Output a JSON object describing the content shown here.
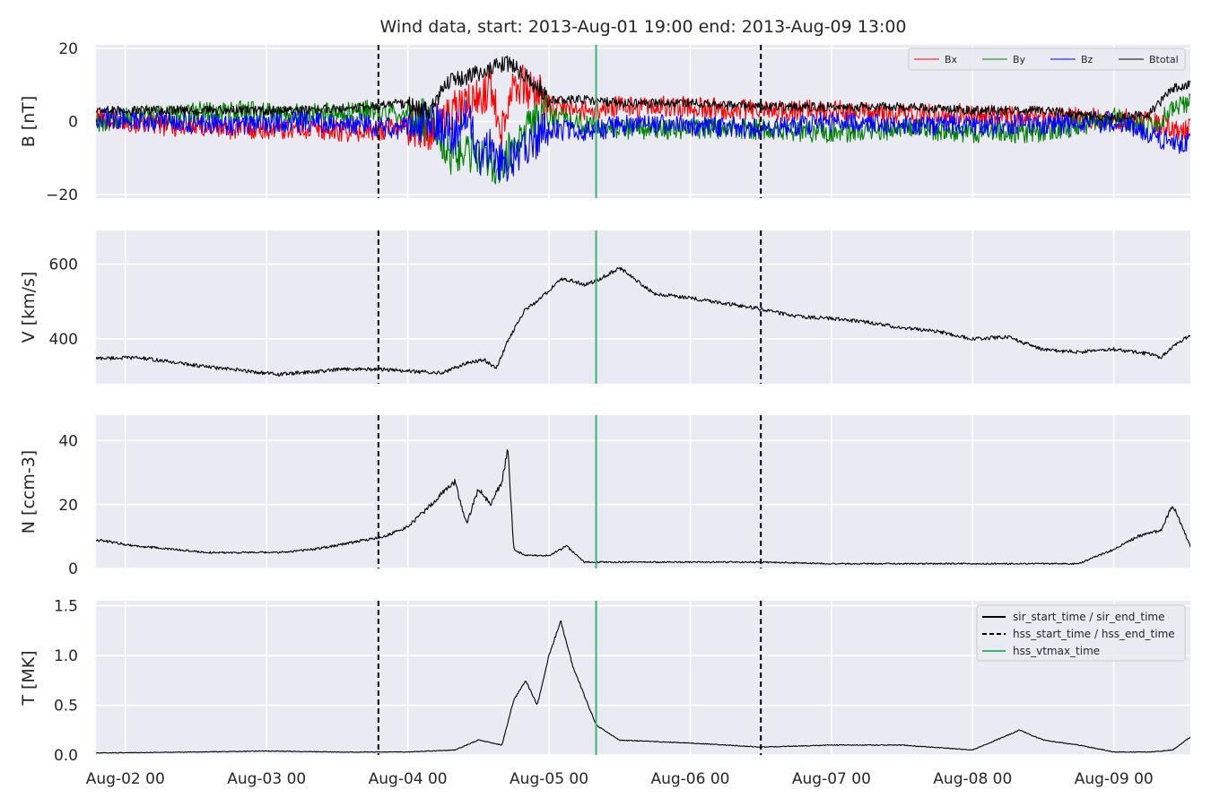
{
  "title": "Wind data, start: 2013-Aug-01 19:00  end: 2013-Aug-09 13:00",
  "colors": {
    "bx": "#ff0000",
    "by": "#008000",
    "bz": "#0000ff",
    "btotal": "#000000",
    "vtmax": "#3cb371",
    "panel_bg": "#eaeaf2",
    "grid": "#ffffff"
  },
  "chart_data": [
    {
      "type": "line",
      "ylabel": "B [nT]",
      "ylim": [
        -21,
        21
      ],
      "yticks": [
        -20,
        0,
        20
      ],
      "ytick_labels": [
        "−20",
        "0",
        "20"
      ],
      "legend_position": "top-right",
      "series": [
        {
          "name": "Bx",
          "color": "#ff0000",
          "x": [
            "08-01 19:00",
            "08-02 06:00",
            "08-02 18:00",
            "08-03 06:00",
            "08-03 18:00",
            "08-03 22:00",
            "08-04 04:00",
            "08-04 08:00",
            "08-04 12:00",
            "08-04 14:00",
            "08-04 16:00",
            "08-04 18:00",
            "08-04 20:00",
            "08-04 22:00",
            "08-05 00:00",
            "08-05 06:00",
            "08-05 12:00",
            "08-06 00:00",
            "08-06 12:00",
            "08-07 00:00",
            "08-07 12:00",
            "08-08 00:00",
            "08-08 12:00",
            "08-09 00:00",
            "08-09 06:00",
            "08-09 10:00",
            "08-09 13:00"
          ],
          "y": [
            1,
            -1,
            -2,
            -2,
            -3,
            -1,
            -2,
            3,
            6,
            10,
            -2,
            12,
            9,
            8,
            4,
            3,
            4,
            4,
            3,
            3,
            2,
            2,
            1,
            1,
            0,
            -2,
            -2
          ]
        },
        {
          "name": "By",
          "color": "#008000",
          "x": [
            "08-01 19:00",
            "08-02 06:00",
            "08-02 18:00",
            "08-03 06:00",
            "08-03 18:00",
            "08-03 22:00",
            "08-04 04:00",
            "08-04 06:00",
            "08-04 08:00",
            "08-04 12:00",
            "08-04 14:00",
            "08-04 16:00",
            "08-04 18:00",
            "08-04 20:00",
            "08-04 22:00",
            "08-05 00:00",
            "08-05 06:00",
            "08-05 12:00",
            "08-06 00:00",
            "08-06 12:00",
            "08-07 00:00",
            "08-07 12:00",
            "08-08 00:00",
            "08-08 12:00",
            "08-09 00:00",
            "08-09 06:00",
            "08-09 10:00",
            "08-09 13:00"
          ],
          "y": [
            0,
            2,
            3,
            2,
            3,
            2,
            0,
            -9,
            -10,
            -8,
            -12,
            -12,
            -6,
            -3,
            1,
            2,
            -1,
            -2,
            -2,
            -2,
            -3,
            -2,
            -3,
            -3,
            1,
            -2,
            3,
            5
          ]
        },
        {
          "name": "Bz",
          "color": "#0000ff",
          "x": [
            "08-01 19:00",
            "08-02 06:00",
            "08-02 18:00",
            "08-03 06:00",
            "08-03 18:00",
            "08-03 22:00",
            "08-04 04:00",
            "08-04 08:00",
            "08-04 10:00",
            "08-04 12:00",
            "08-04 14:00",
            "08-04 16:00",
            "08-04 18:00",
            "08-04 20:00",
            "08-04 22:00",
            "08-05 00:00",
            "08-05 06:00",
            "08-05 12:00",
            "08-06 00:00",
            "08-06 12:00",
            "08-07 00:00",
            "08-07 12:00",
            "08-08 00:00",
            "08-08 12:00",
            "08-09 00:00",
            "08-09 06:00",
            "08-09 10:00",
            "08-09 13:00"
          ],
          "y": [
            1,
            0,
            -1,
            0,
            -1,
            -2,
            0,
            -4,
            4,
            -10,
            -6,
            -12,
            -10,
            -8,
            -4,
            -2,
            -3,
            -1,
            -1,
            -2,
            0,
            -1,
            -1,
            -1,
            0,
            -3,
            -6,
            -6
          ]
        },
        {
          "name": "Btotal",
          "color": "#000000",
          "x": [
            "08-01 19:00",
            "08-02 06:00",
            "08-02 18:00",
            "08-03 06:00",
            "08-03 18:00",
            "08-03 22:00",
            "08-04 04:00",
            "08-04 06:00",
            "08-04 08:00",
            "08-04 12:00",
            "08-04 14:00",
            "08-04 16:00",
            "08-04 18:00",
            "08-04 20:00",
            "08-04 22:00",
            "08-05 00:00",
            "08-05 06:00",
            "08-05 12:00",
            "08-06 00:00",
            "08-06 12:00",
            "08-07 00:00",
            "08-07 12:00",
            "08-08 00:00",
            "08-08 12:00",
            "08-09 00:00",
            "08-09 06:00",
            "08-09 10:00",
            "08-09 13:00"
          ],
          "y": [
            3,
            3,
            3,
            3,
            4,
            5,
            3,
            10,
            11,
            13,
            14,
            16,
            15,
            12,
            10,
            6,
            6,
            5,
            5,
            4,
            4,
            4,
            3,
            3,
            1,
            2,
            9,
            10
          ]
        }
      ]
    },
    {
      "type": "line",
      "ylabel": "V [km/s]",
      "ylim": [
        280,
        690
      ],
      "yticks": [
        400,
        600
      ],
      "series": [
        {
          "name": "",
          "color": "#000000",
          "x": [
            "08-01 19:00",
            "08-02 02:00",
            "08-02 08:00",
            "08-02 14:00",
            "08-02 20:00",
            "08-03 02:00",
            "08-03 08:00",
            "08-03 14:00",
            "08-03 20:00",
            "08-04 02:00",
            "08-04 06:00",
            "08-04 10:00",
            "08-04 13:00",
            "08-04 15:00",
            "08-04 17:00",
            "08-04 20:00",
            "08-04 22:00",
            "08-05 02:00",
            "08-05 04:00",
            "08-05 06:00",
            "08-05 08:00",
            "08-05 12:00",
            "08-05 18:00",
            "08-06 00:00",
            "08-06 06:00",
            "08-06 12:00",
            "08-06 18:00",
            "08-07 00:00",
            "08-07 06:00",
            "08-07 12:00",
            "08-07 18:00",
            "08-08 00:00",
            "08-08 06:00",
            "08-08 12:00",
            "08-08 18:00",
            "08-09 00:00",
            "08-09 06:00",
            "08-09 08:00",
            "08-09 10:00",
            "08-09 13:00"
          ],
          "y": [
            348,
            350,
            338,
            325,
            315,
            305,
            312,
            320,
            318,
            312,
            310,
            335,
            345,
            320,
            395,
            480,
            500,
            560,
            555,
            545,
            555,
            590,
            520,
            510,
            495,
            480,
            460,
            455,
            445,
            430,
            420,
            400,
            405,
            370,
            365,
            372,
            360,
            350,
            380,
            410
          ]
        }
      ]
    },
    {
      "type": "line",
      "ylabel": "N [ccm-3]",
      "ylim": [
        0,
        48
      ],
      "yticks": [
        0,
        20,
        40
      ],
      "series": [
        {
          "name": "",
          "color": "#000000",
          "x": [
            "08-01 19:00",
            "08-02 02:00",
            "08-02 08:00",
            "08-02 14:00",
            "08-02 20:00",
            "08-03 02:00",
            "08-03 08:00",
            "08-03 14:00",
            "08-03 20:00",
            "08-04 00:00",
            "08-04 04:00",
            "08-04 06:00",
            "08-04 08:00",
            "08-04 10:00",
            "08-04 12:00",
            "08-04 14:00",
            "08-04 16:00",
            "08-04 17:00",
            "08-04 18:00",
            "08-04 20:00",
            "08-05 00:00",
            "08-05 03:00",
            "08-05 06:00",
            "08-05 12:00",
            "08-06 00:00",
            "08-06 12:00",
            "08-07 00:00",
            "08-07 12:00",
            "08-08 00:00",
            "08-08 12:00",
            "08-08 18:00",
            "08-09 00:00",
            "08-09 04:00",
            "08-09 08:00",
            "08-09 10:00",
            "08-09 13:00"
          ],
          "y": [
            9,
            7,
            6,
            5,
            5,
            5,
            6,
            8,
            10,
            13,
            20,
            24,
            27,
            14,
            25,
            20,
            27,
            38,
            6,
            4,
            4,
            7,
            2,
            2,
            2,
            2,
            1.5,
            1.5,
            1.5,
            1.5,
            1.5,
            6,
            10,
            12,
            20,
            7
          ]
        }
      ]
    },
    {
      "type": "line",
      "ylabel": "T [MK]",
      "ylim": [
        0,
        1.55
      ],
      "yticks": [
        0.0,
        0.5,
        1.0,
        1.5
      ],
      "ytick_labels": [
        "0.0",
        "0.5",
        "1.0",
        "1.5"
      ],
      "legend_position": "top-right",
      "series": [
        {
          "name": "",
          "color": "#000000",
          "x": [
            "08-01 19:00",
            "08-02 12:00",
            "08-03 00:00",
            "08-03 12:00",
            "08-04 00:00",
            "08-04 08:00",
            "08-04 12:00",
            "08-04 16:00",
            "08-04 18:00",
            "08-04 20:00",
            "08-04 22:00",
            "08-05 00:00",
            "08-05 02:00",
            "08-05 04:00",
            "08-05 08:00",
            "08-05 12:00",
            "08-06 00:00",
            "08-06 12:00",
            "08-07 00:00",
            "08-07 12:00",
            "08-08 00:00",
            "08-08 08:00",
            "08-08 12:00",
            "08-08 18:00",
            "08-09 00:00",
            "08-09 06:00",
            "08-09 10:00",
            "08-09 13:00"
          ],
          "y": [
            0.02,
            0.03,
            0.04,
            0.03,
            0.03,
            0.05,
            0.15,
            0.1,
            0.55,
            0.75,
            0.5,
            1.0,
            1.35,
            0.9,
            0.3,
            0.15,
            0.12,
            0.08,
            0.1,
            0.1,
            0.05,
            0.25,
            0.15,
            0.1,
            0.03,
            0.03,
            0.05,
            0.18
          ]
        }
      ]
    }
  ],
  "xaxis": {
    "ticks": [
      "08-02 00:00",
      "08-03 00:00",
      "08-04 00:00",
      "08-05 00:00",
      "08-06 00:00",
      "08-07 00:00",
      "08-08 00:00",
      "08-09 00:00"
    ],
    "tick_labels": [
      "Aug-02 00",
      "Aug-03 00",
      "Aug-04 00",
      "Aug-05 00",
      "Aug-06 00",
      "Aug-07 00",
      "Aug-08 00",
      "Aug-09 00"
    ],
    "range": [
      "08-01 19:00",
      "08-09 13:00"
    ]
  },
  "events": {
    "hss_start_time": "08-03 19:00",
    "hss_end_time": "08-06 12:00",
    "hss_vtmax_time": "08-05 08:00"
  },
  "legend_b": [
    "Bx",
    "By",
    "Bz",
    "Btotal"
  ],
  "legend_events": [
    "sir_start_time / sir_end_time",
    "hss_start_time / hss_end_time",
    "hss_vtmax_time"
  ]
}
